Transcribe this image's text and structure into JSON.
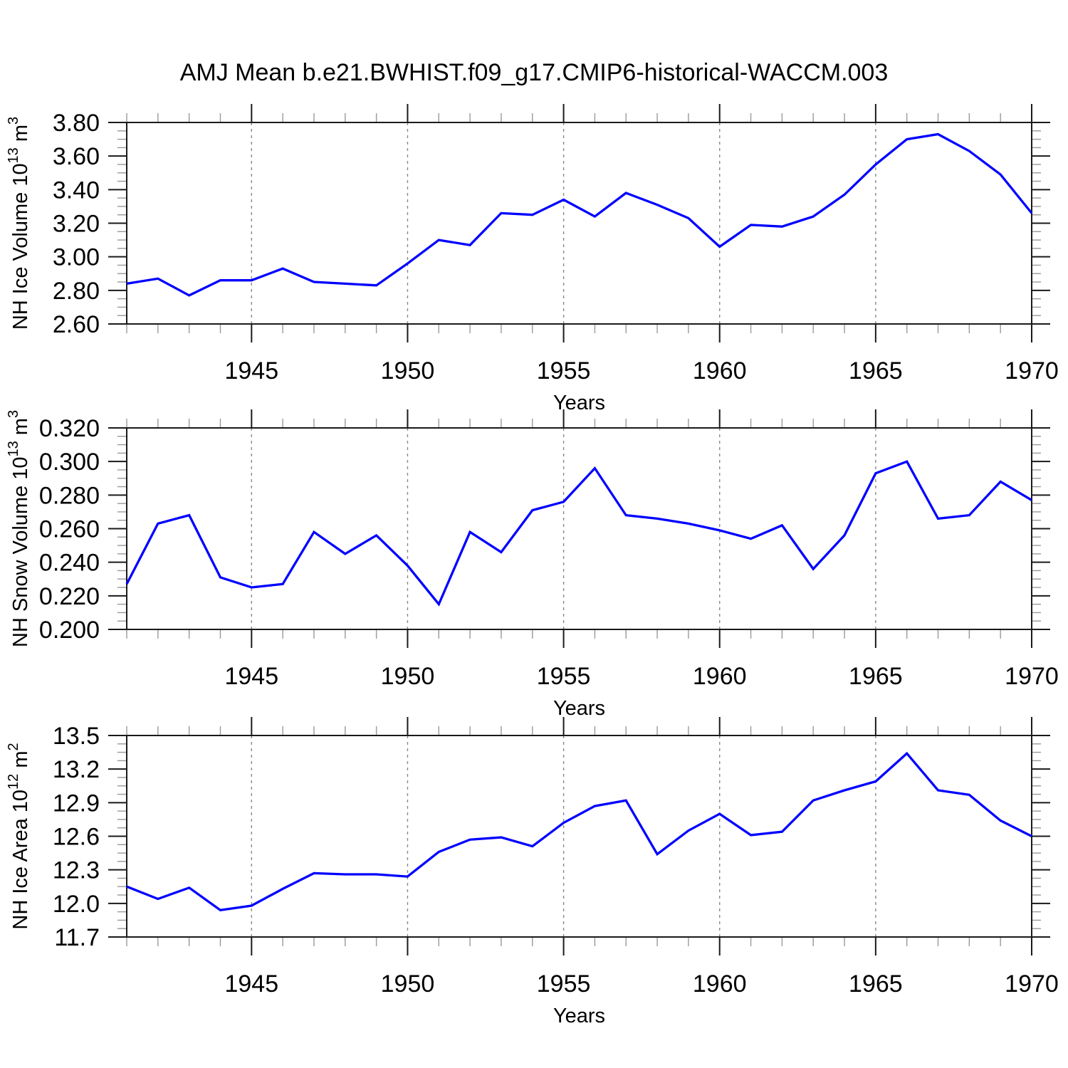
{
  "title": "AMJ Mean b.e21.BWHIST.f09_g17.CMIP6-historical-WACCM.003",
  "colors": {
    "line": "#0000ff",
    "grid": "#888888",
    "axis": "#1a1a1a",
    "minor_tick": "#999999"
  },
  "x_axis": {
    "label": "Years",
    "years_start": 1941,
    "years_end": 1970,
    "tick_years": [
      1945,
      1950,
      1955,
      1960,
      1965,
      1970
    ],
    "tick_labels": [
      "1945",
      "1950",
      "1955",
      "1960",
      "1965",
      "1970"
    ],
    "gridline_years": [
      1945,
      1950,
      1955,
      1960,
      1965
    ]
  },
  "chart_data": [
    {
      "type": "line",
      "panel": "nh-ice-volume",
      "title": "",
      "xlabel": "Years",
      "ylabel": {
        "text": "NH Ice Volume 10",
        "exponent": "13",
        "unit": "m",
        "unit_exponent": "3"
      },
      "ylim": [
        2.6,
        3.8
      ],
      "yticks": [
        2.6,
        2.8,
        3.0,
        3.2,
        3.4,
        3.6,
        3.8
      ],
      "ytick_labels": [
        "2.60",
        "2.80",
        "3.00",
        "3.20",
        "3.40",
        "3.60",
        "3.80"
      ],
      "grid": "vertical-dashed",
      "legend": "none",
      "x": [
        1941,
        1942,
        1943,
        1944,
        1945,
        1946,
        1947,
        1948,
        1949,
        1950,
        1951,
        1952,
        1953,
        1954,
        1955,
        1956,
        1957,
        1958,
        1959,
        1960,
        1961,
        1962,
        1963,
        1964,
        1965,
        1966,
        1967,
        1968,
        1969,
        1970
      ],
      "values": [
        2.84,
        2.87,
        2.77,
        2.86,
        2.86,
        2.93,
        2.85,
        2.84,
        2.83,
        2.96,
        3.1,
        3.07,
        3.26,
        3.25,
        3.34,
        3.24,
        3.38,
        3.31,
        3.23,
        3.06,
        3.19,
        3.18,
        3.24,
        3.37,
        3.55,
        3.7,
        3.73,
        3.63,
        3.49,
        3.26
      ]
    },
    {
      "type": "line",
      "panel": "nh-snow-volume",
      "title": "",
      "xlabel": "Years",
      "ylabel": {
        "text": "NH Snow Volume 10",
        "exponent": "13",
        "unit": "m",
        "unit_exponent": "3"
      },
      "ylim": [
        0.2,
        0.32
      ],
      "yticks": [
        0.2,
        0.22,
        0.24,
        0.26,
        0.28,
        0.3,
        0.32
      ],
      "ytick_labels": [
        "0.200",
        "0.220",
        "0.240",
        "0.260",
        "0.280",
        "0.300",
        "0.320"
      ],
      "grid": "vertical-dashed",
      "legend": "none",
      "x": [
        1941,
        1942,
        1943,
        1944,
        1945,
        1946,
        1947,
        1948,
        1949,
        1950,
        1951,
        1952,
        1953,
        1954,
        1955,
        1956,
        1957,
        1958,
        1959,
        1960,
        1961,
        1962,
        1963,
        1964,
        1965,
        1966,
        1967,
        1968,
        1969,
        1970
      ],
      "values": [
        0.227,
        0.263,
        0.268,
        0.231,
        0.225,
        0.227,
        0.258,
        0.245,
        0.256,
        0.238,
        0.215,
        0.258,
        0.246,
        0.271,
        0.276,
        0.296,
        0.268,
        0.266,
        0.263,
        0.259,
        0.254,
        0.262,
        0.236,
        0.256,
        0.293,
        0.3,
        0.266,
        0.268,
        0.288,
        0.277
      ]
    },
    {
      "type": "line",
      "panel": "nh-ice-area",
      "title": "",
      "xlabel": "Years",
      "ylabel": {
        "text": "NH Ice Area 10",
        "exponent": "12",
        "unit": "m",
        "unit_exponent": "2"
      },
      "ylim": [
        11.7,
        13.5
      ],
      "yticks": [
        11.7,
        12.0,
        12.3,
        12.6,
        12.9,
        13.2,
        13.5
      ],
      "ytick_labels": [
        "11.7",
        "12.0",
        "12.3",
        "12.6",
        "12.9",
        "13.2",
        "13.5"
      ],
      "grid": "vertical-dashed",
      "legend": "none",
      "x": [
        1941,
        1942,
        1943,
        1944,
        1945,
        1946,
        1947,
        1948,
        1949,
        1950,
        1951,
        1952,
        1953,
        1954,
        1955,
        1956,
        1957,
        1958,
        1959,
        1960,
        1961,
        1962,
        1963,
        1964,
        1965,
        1966,
        1967,
        1968,
        1969,
        1970
      ],
      "values": [
        12.15,
        12.04,
        12.14,
        11.94,
        11.98,
        12.13,
        12.27,
        12.26,
        12.26,
        12.24,
        12.46,
        12.57,
        12.59,
        12.51,
        12.72,
        12.87,
        12.92,
        12.44,
        12.65,
        12.8,
        12.61,
        12.64,
        12.92,
        13.01,
        13.09,
        13.34,
        13.01,
        12.97,
        12.74,
        12.6
      ]
    }
  ]
}
